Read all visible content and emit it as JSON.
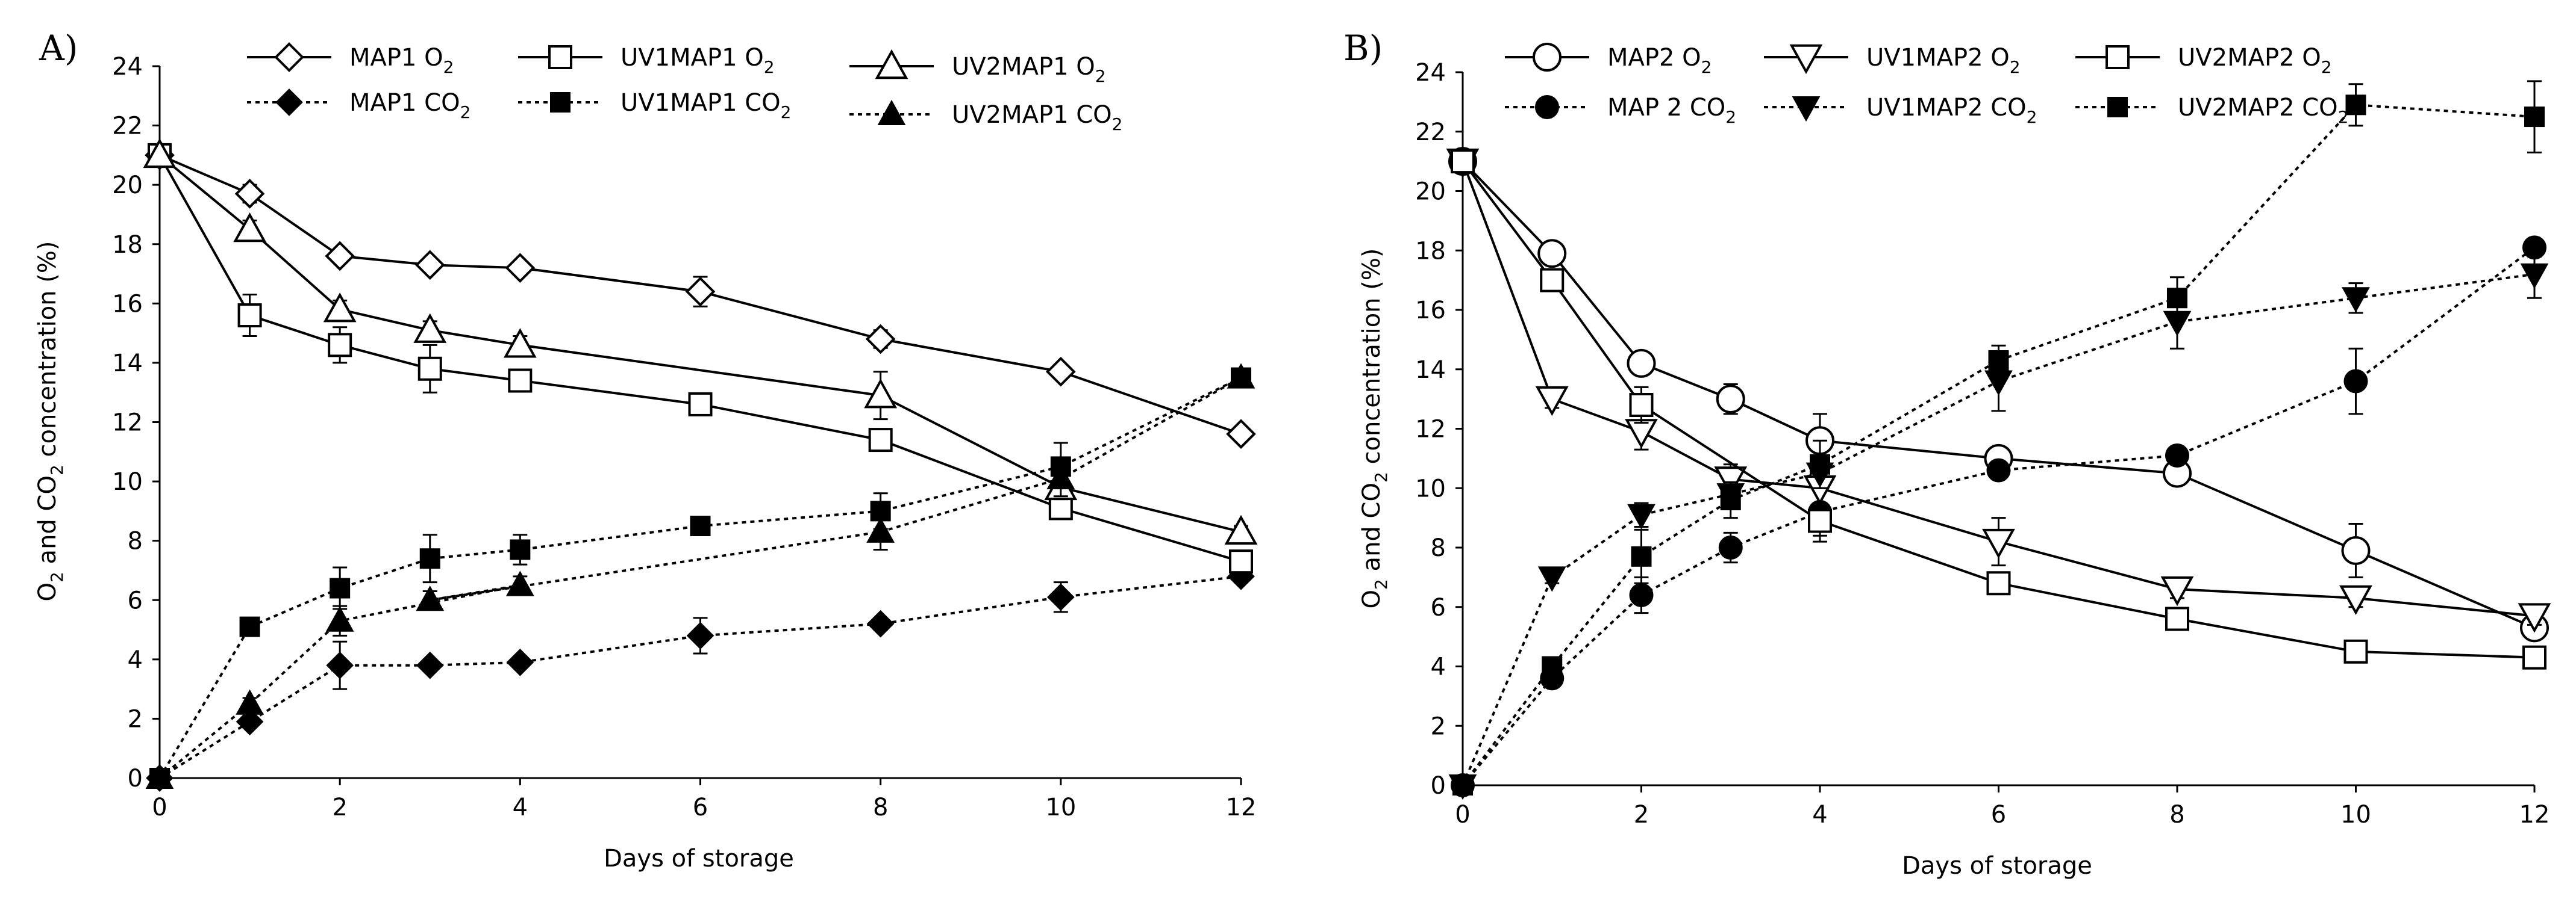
{
  "chart_data": [
    {
      "type": "line",
      "panel_label": "A)",
      "xlabel": "Days of storage",
      "ylabel_parts": [
        "O",
        "2",
        " and CO",
        "2",
        " concentration (%)"
      ],
      "xlim": [
        0,
        12
      ],
      "ylim": [
        0,
        24
      ],
      "xticks": [
        0,
        2,
        4,
        6,
        8,
        10,
        12
      ],
      "yticks": [
        0,
        2,
        4,
        6,
        8,
        10,
        12,
        14,
        16,
        18,
        20,
        22,
        24
      ],
      "grid": false,
      "series": [
        {
          "name": "MAP1 O2",
          "legend": {
            "base": "MAP1 O",
            "sub": "2"
          },
          "marker": "diamond",
          "filled": false,
          "dashed": false,
          "x": [
            0,
            1,
            2,
            3,
            4,
            6,
            8,
            10,
            12
          ],
          "y": [
            21.0,
            19.7,
            17.6,
            17.3,
            17.2,
            16.4,
            14.8,
            13.7,
            11.6
          ],
          "err": [
            0,
            0.3,
            0.2,
            0.2,
            0.2,
            0.5,
            0.3,
            0.2,
            0.2
          ]
        },
        {
          "name": "MAP1 CO2",
          "legend": {
            "base": "MAP1 CO",
            "sub": "2"
          },
          "marker": "diamond",
          "filled": true,
          "dashed": true,
          "x": [
            0,
            1,
            2,
            3,
            4,
            6,
            8,
            10,
            12
          ],
          "y": [
            0,
            1.9,
            3.8,
            3.8,
            3.9,
            4.8,
            5.2,
            6.1,
            6.8
          ],
          "err": [
            0,
            0.2,
            0.8,
            0.2,
            0.2,
            0.6,
            0.2,
            0.5,
            0.2
          ]
        },
        {
          "name": "UV1MAP1 O2",
          "legend": {
            "base": "UV1MAP1 O",
            "sub": "2"
          },
          "marker": "square",
          "filled": false,
          "dashed": false,
          "x": [
            0,
            1,
            2,
            3,
            4,
            6,
            8,
            10,
            12
          ],
          "y": [
            21.0,
            15.6,
            14.6,
            13.8,
            13.4,
            12.6,
            11.4,
            9.1,
            7.3
          ],
          "err": [
            0,
            0.7,
            0.6,
            0.8,
            0.3,
            0.3,
            0.3,
            0.3,
            0.3
          ]
        },
        {
          "name": "UV1MAP1 CO2",
          "legend": {
            "base": "UV1MAP1 CO",
            "sub": "2"
          },
          "marker": "square",
          "filled": true,
          "dashed": true,
          "x": [
            0,
            1,
            2,
            3,
            4,
            6,
            8,
            10,
            12
          ],
          "y": [
            0,
            5.1,
            6.4,
            7.4,
            7.7,
            8.5,
            9.0,
            10.5,
            13.5
          ],
          "err": [
            0,
            0.2,
            0.7,
            0.8,
            0.5,
            0.3,
            0.6,
            0.8,
            0.2
          ]
        },
        {
          "name": "UV2MAP1 O2",
          "legend": {
            "base": "UV2MAP1 O",
            "sub": "2"
          },
          "marker": "triangle",
          "filled": false,
          "dashed": false,
          "x": [
            0,
            1,
            2,
            3,
            4,
            8,
            10,
            12
          ],
          "y": [
            21.0,
            18.5,
            15.8,
            15.1,
            14.6,
            12.9,
            9.8,
            8.3
          ],
          "err": [
            0,
            0.3,
            0.3,
            0.3,
            0.3,
            0.8,
            0.4,
            0.2
          ]
        },
        {
          "name": "UV2MAP1 CO2",
          "legend": {
            "base": "UV2MAP1 CO",
            "sub": "2"
          },
          "marker": "triangle",
          "filled": true,
          "dashed": true,
          "x": [
            0,
            1,
            2,
            4,
            3,
            8,
            10,
            12
          ],
          "y": [
            0,
            2.5,
            5.3,
            6.5,
            6.0,
            8.3,
            10.1,
            13.5
          ],
          "err": [
            0,
            0.2,
            0.5,
            0.3,
            0.3,
            0.6,
            0.6,
            0.2
          ]
        }
      ]
    },
    {
      "type": "line",
      "panel_label": "B)",
      "xlabel": "Days of storage",
      "ylabel_parts": [
        "O",
        "2",
        " and CO",
        "2",
        " concentration (%)"
      ],
      "xlim": [
        0,
        12
      ],
      "ylim": [
        0,
        24
      ],
      "xticks": [
        0,
        2,
        4,
        6,
        8,
        10,
        12
      ],
      "yticks": [
        0,
        2,
        4,
        6,
        8,
        10,
        12,
        14,
        16,
        18,
        20,
        22,
        24
      ],
      "grid": false,
      "series": [
        {
          "name": "MAP2 O2",
          "legend": {
            "base": "MAP2 O",
            "sub": "2"
          },
          "marker": "circle",
          "filled": false,
          "dashed": false,
          "x": [
            0,
            1,
            2,
            3,
            4,
            6,
            8,
            10,
            12
          ],
          "y": [
            21.0,
            17.9,
            14.2,
            13.0,
            11.6,
            11.0,
            10.5,
            7.9,
            5.3
          ],
          "err": [
            0,
            0.3,
            0.3,
            0.5,
            0.9,
            0.3,
            0.3,
            0.9,
            0.3
          ]
        },
        {
          "name": "MAP 2 CO2",
          "legend": {
            "base": "MAP 2 CO",
            "sub": "2"
          },
          "marker": "circle",
          "filled": true,
          "dashed": true,
          "x": [
            0,
            1,
            2,
            3,
            4,
            6,
            8,
            10,
            12
          ],
          "y": [
            0,
            3.6,
            6.4,
            8.0,
            9.2,
            10.6,
            11.1,
            13.6,
            18.1
          ],
          "err": [
            0,
            0.3,
            0.6,
            0.5,
            1.0,
            0.3,
            0.3,
            1.1,
            0.3
          ]
        },
        {
          "name": "UV1MAP2 O2",
          "legend": {
            "base": "UV1MAP2 O",
            "sub": "2"
          },
          "marker": "triangle-down",
          "filled": false,
          "dashed": false,
          "x": [
            0,
            1,
            2,
            3,
            4,
            6,
            8,
            10,
            12
          ],
          "y": [
            21.0,
            13.0,
            11.9,
            10.3,
            10.0,
            8.2,
            6.6,
            6.3,
            5.7
          ],
          "err": [
            0,
            0.3,
            0.6,
            0.5,
            0.5,
            0.8,
            0.3,
            0.3,
            0.3
          ]
        },
        {
          "name": "UV1MAP2 CO2",
          "legend": {
            "base": "UV1MAP2 CO",
            "sub": "2"
          },
          "marker": "triangle-down",
          "filled": true,
          "dashed": true,
          "x": [
            0,
            1,
            2,
            3,
            4,
            6,
            8,
            10,
            12
          ],
          "y": [
            0,
            7.0,
            9.1,
            9.8,
            10.5,
            13.6,
            15.6,
            16.4,
            17.2
          ],
          "err": [
            0,
            0.2,
            0.4,
            0.4,
            0.5,
            1.0,
            0.9,
            0.5,
            0.8
          ]
        },
        {
          "name": "UV2MAP2 O2",
          "legend": {
            "base": "UV2MAP2 O",
            "sub": "2"
          },
          "marker": "square",
          "filled": false,
          "dashed": false,
          "x": [
            0,
            1,
            2,
            4,
            6,
            8,
            10,
            12
          ],
          "y": [
            21.0,
            17.0,
            12.8,
            8.9,
            6.8,
            5.6,
            4.5,
            4.3
          ],
          "err": [
            0,
            0.3,
            0.6,
            0.5,
            0.3,
            0.3,
            0.3,
            0.2
          ]
        },
        {
          "name": "UV2MAP2 CO2",
          "legend": {
            "base": "UV2MAP2 CO",
            "sub": "2"
          },
          "marker": "square",
          "filled": true,
          "dashed": true,
          "x": [
            0,
            1,
            2,
            3,
            4,
            6,
            8,
            10,
            12
          ],
          "y": [
            0,
            4.0,
            7.7,
            9.6,
            10.8,
            14.3,
            16.4,
            22.9,
            22.5
          ],
          "err": [
            0,
            0.3,
            0.9,
            0.6,
            0.8,
            0.5,
            0.7,
            0.7,
            1.2
          ]
        }
      ]
    }
  ]
}
